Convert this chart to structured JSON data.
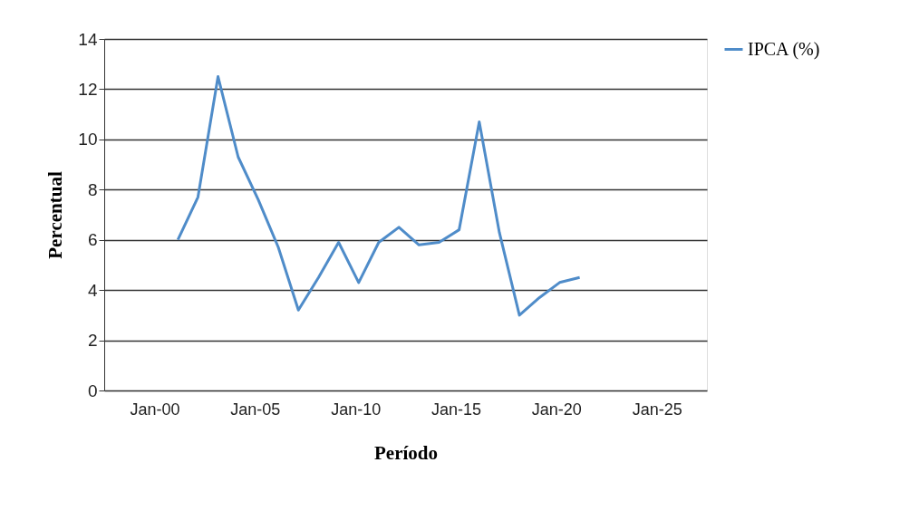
{
  "chart_data": {
    "type": "line",
    "xlabel": "Período",
    "ylabel": "Percentual",
    "x": [
      "2001-03",
      "2002-03",
      "2003-03",
      "2004-03",
      "2005-03",
      "2006-03",
      "2007-03",
      "2008-03",
      "2009-03",
      "2010-03",
      "2011-03",
      "2012-03",
      "2013-03",
      "2014-03",
      "2015-03",
      "2016-03",
      "2017-03",
      "2018-03",
      "2019-03",
      "2020-03",
      "2021-03"
    ],
    "series": [
      {
        "name": "IPCA (%)",
        "color": "#4f8cc9",
        "values": [
          6.0,
          7.7,
          12.5,
          9.3,
          7.6,
          5.7,
          3.2,
          4.5,
          5.9,
          4.3,
          5.9,
          6.5,
          5.8,
          5.9,
          6.4,
          10.7,
          6.3,
          3.0,
          3.7,
          4.3,
          4.5
        ]
      }
    ],
    "xlim": [
      "1997-07",
      "2027-07"
    ],
    "xticks": [
      {
        "value": "2000-01",
        "label": "Jan-00"
      },
      {
        "value": "2005-01",
        "label": "Jan-05"
      },
      {
        "value": "2010-01",
        "label": "Jan-10"
      },
      {
        "value": "2015-01",
        "label": "Jan-15"
      },
      {
        "value": "2020-01",
        "label": "Jan-20"
      },
      {
        "value": "2025-01",
        "label": "Jan-25"
      }
    ],
    "ylim": [
      0,
      14
    ],
    "yticks": [
      0,
      2,
      4,
      6,
      8,
      10,
      12,
      14
    ],
    "grid": "y",
    "legend": "right",
    "marker": "none",
    "line_style": "solid"
  }
}
